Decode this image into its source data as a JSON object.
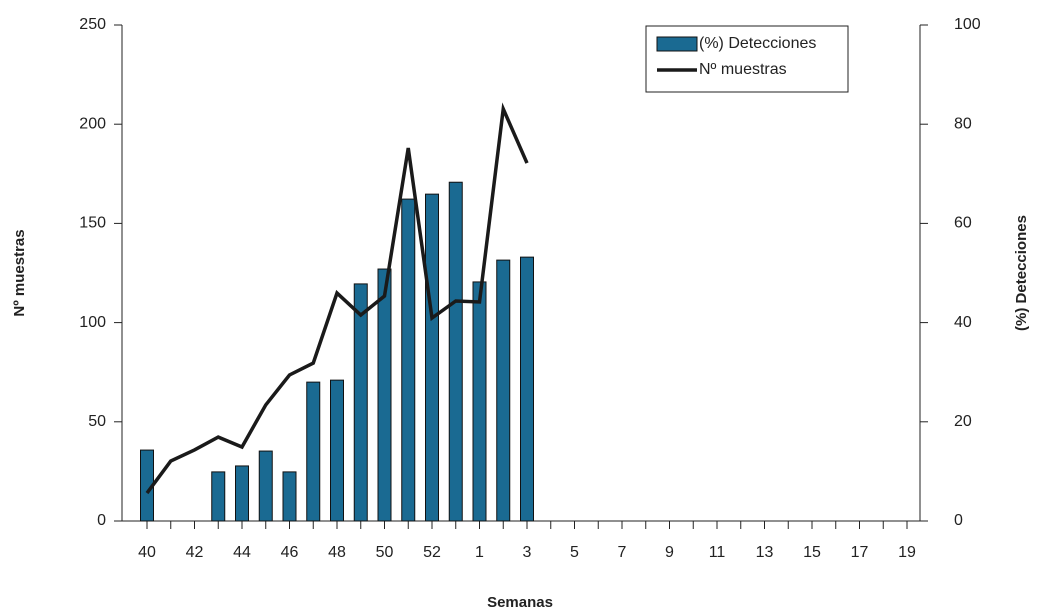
{
  "chart_data": {
    "type": "bar_line",
    "x_label": "Semanas",
    "y_label": "Nº muestras",
    "y2_label": "(%) Detecciones",
    "categories": [
      "40",
      null,
      "42",
      null,
      "44",
      null,
      "46",
      null,
      "48",
      null,
      "50",
      null,
      "52",
      null,
      "1",
      null,
      "3",
      null,
      "5",
      null,
      "7",
      null,
      "9",
      null,
      "11",
      null,
      "13",
      null,
      "15",
      null,
      "17",
      null,
      "19"
    ],
    "series": [
      {
        "name": "(%) Detecciones",
        "type": "bar",
        "axis": "y2",
        "color": "#1a6a92",
        "values": [
          14.3,
          null,
          null,
          9.9,
          11.1,
          14.1,
          9.9,
          28.0,
          28.4,
          47.8,
          50.8,
          64.9,
          65.9,
          68.3,
          48.2,
          52.6,
          53.2,
          null,
          null,
          null,
          null,
          null,
          null,
          null,
          null,
          null,
          null,
          null,
          null,
          null,
          null,
          null,
          null
        ]
      },
      {
        "name": "Nº muestras",
        "type": "line",
        "axis": "y",
        "color": "#1a1a1a",
        "values": [
          14.1,
          30.2,
          35.8,
          42.3,
          37.3,
          58.5,
          73.6,
          79.6,
          114.9,
          103.8,
          113.4,
          188.0,
          102.3,
          110.9,
          110.4,
          207.7,
          180.4,
          null,
          null,
          null,
          null,
          null,
          null,
          null,
          null,
          null,
          null,
          null,
          null,
          null,
          null,
          null,
          null
        ]
      }
    ],
    "ylim": [
      0,
      250
    ],
    "yticks": [
      0,
      50,
      100,
      150,
      200,
      250
    ],
    "y2lim": [
      0,
      100
    ],
    "y2ticks": [
      0,
      20,
      40,
      60,
      80,
      100
    ],
    "legend": "top-right"
  }
}
